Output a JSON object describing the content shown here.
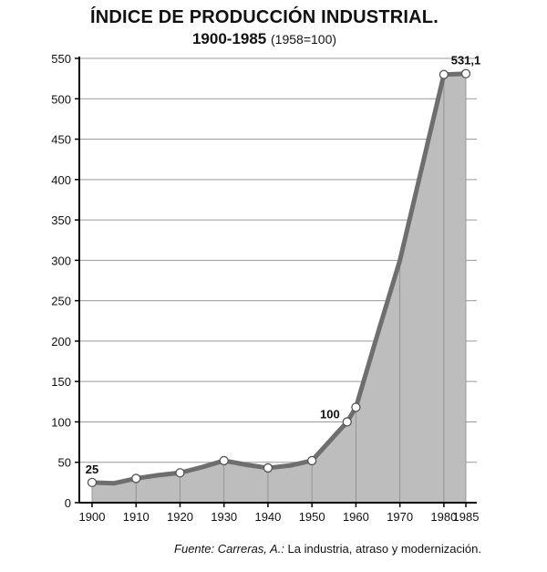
{
  "title": "ÍNDICE DE PRODUCCIÓN INDUSTRIAL.",
  "subtitle_main": "1900-1985",
  "subtitle_note": "(1958=100)",
  "source_italic": "Fuente: Carreras, A.:",
  "source_rest": " La industria, atraso y modernización.",
  "colors": {
    "area_fill": "#bdbdbd",
    "line": "#6e6e6e",
    "grid": "#9a9a9a",
    "axis": "#000000",
    "marker_fill": "#ffffff"
  },
  "chart_data": {
    "type": "area",
    "title": "ÍNDICE DE PRODUCCIÓN INDUSTRIAL.",
    "subtitle": "1900-1985 (1958=100)",
    "xlabel": "",
    "ylabel": "",
    "xlim": [
      1900,
      1985
    ],
    "ylim": [
      0,
      550
    ],
    "y_ticks": [
      0,
      50,
      100,
      150,
      200,
      250,
      300,
      350,
      400,
      450,
      500,
      550
    ],
    "x_ticks": [
      1900,
      1910,
      1920,
      1930,
      1940,
      1950,
      1960,
      1970,
      1980,
      1985
    ],
    "grid": "horizontal",
    "series": [
      {
        "x": [
          1900,
          1905,
          1910,
          1915,
          1920,
          1925,
          1930,
          1935,
          1940,
          1945,
          1950,
          1958,
          1960,
          1965,
          1970,
          1975,
          1980,
          1985
        ],
        "values": [
          25,
          24,
          30,
          34,
          37,
          44,
          52,
          47,
          43,
          46,
          52,
          100,
          118,
          210,
          300,
          415,
          530,
          531.1
        ]
      }
    ],
    "markers": [
      {
        "x": 1900,
        "y": 25
      },
      {
        "x": 1910,
        "y": 30
      },
      {
        "x": 1920,
        "y": 37
      },
      {
        "x": 1930,
        "y": 52
      },
      {
        "x": 1940,
        "y": 43
      },
      {
        "x": 1950,
        "y": 52
      },
      {
        "x": 1958,
        "y": 100
      },
      {
        "x": 1960,
        "y": 118
      },
      {
        "x": 1980,
        "y": 530
      },
      {
        "x": 1985,
        "y": 531.1
      }
    ],
    "annotations": [
      {
        "x": 1900,
        "y": 25,
        "text": "25",
        "pos": "above"
      },
      {
        "x": 1958,
        "y": 100,
        "text": "100",
        "pos": "above-left"
      },
      {
        "x": 1985,
        "y": 531.1,
        "text": "531,1",
        "pos": "above"
      }
    ]
  }
}
